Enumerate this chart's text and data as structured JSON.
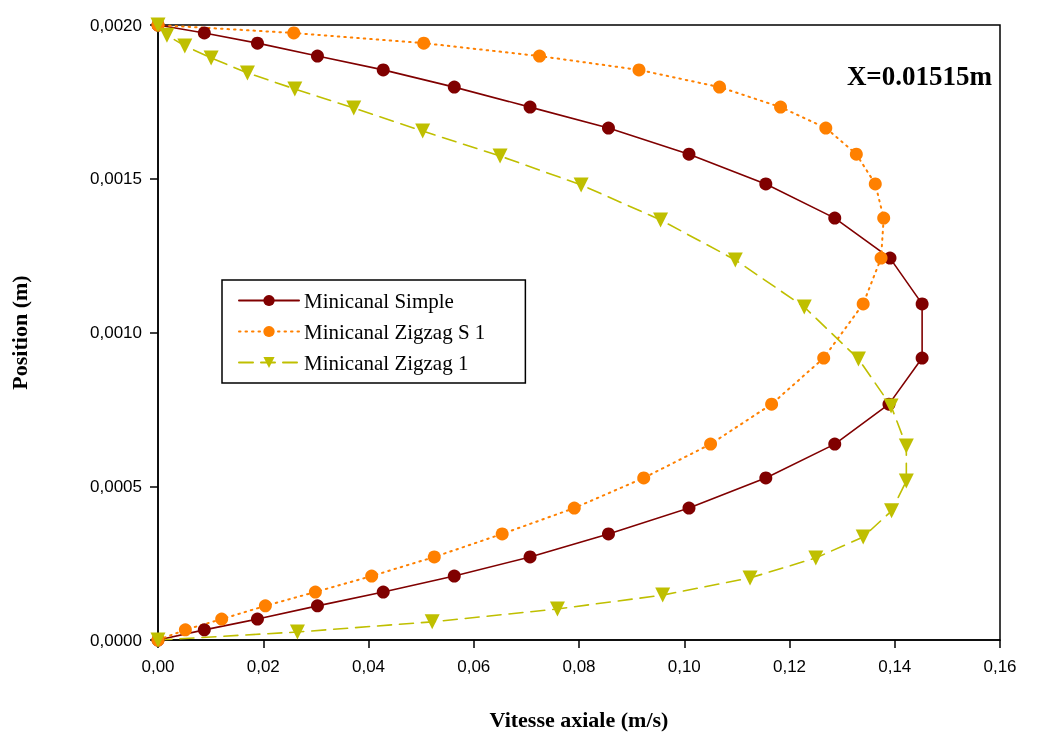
{
  "chart_data": {
    "type": "line",
    "xlabel": "Vitesse axiale (m/s)",
    "ylabel": "Position (m)",
    "annotations": [
      "X=0.01515m"
    ],
    "xlim": [
      0,
      0.16
    ],
    "xticks": [
      {
        "value": 0,
        "label": "0,00"
      },
      {
        "value": 0.02,
        "label": "0,02"
      },
      {
        "value": 0.04,
        "label": "0,04"
      },
      {
        "value": 0.06,
        "label": "0,06"
      },
      {
        "value": 0.08,
        "label": "0,08"
      },
      {
        "value": 0.1,
        "label": "0,10"
      },
      {
        "value": 0.12,
        "label": "0,12"
      },
      {
        "value": 0.14,
        "label": "0,14"
      },
      {
        "value": 0.16,
        "label": "0,16"
      }
    ],
    "ylim": [
      0,
      0.002
    ],
    "yticks": [
      {
        "value": 0,
        "label": "0,0000"
      },
      {
        "value": 0.0005,
        "label": "0,0005"
      },
      {
        "value": 0.001,
        "label": "0,0010"
      },
      {
        "value": 0.0015,
        "label": "0,0015"
      },
      {
        "value": 0.002,
        "label": "0,0020"
      }
    ],
    "grid": false,
    "legend": "left",
    "series": [
      {
        "name": "Minicanal Simple",
        "color": "#800000",
        "marker": "circle",
        "line_style": "solid",
        "x": [
          0,
          0.0088,
          0.0189,
          0.0303,
          0.0428,
          0.0563,
          0.0707,
          0.0856,
          0.1009,
          0.1155,
          0.1286,
          0.1389,
          0.1452,
          0.1452,
          0.1391,
          0.1286,
          0.1155,
          0.1009,
          0.0856,
          0.0707,
          0.0563,
          0.0428,
          0.0303,
          0.0189,
          0.0088,
          0
        ],
        "values": [
          0,
          3.3e-05,
          6.8e-05,
          0.000111,
          0.000156,
          0.000208,
          0.00027,
          0.000345,
          0.000429,
          0.000527,
          0.000637,
          0.000767,
          0.000917,
          0.001093,
          0.001242,
          0.001372,
          0.001483,
          0.00158,
          0.001665,
          0.001733,
          0.001798,
          0.001854,
          0.001899,
          0.001941,
          0.001974,
          0.002
        ]
      },
      {
        "name": "Minicanal Zigzag S 1",
        "color": "#ff8000",
        "marker": "circle",
        "line_style": "dotted",
        "x": [
          0,
          0.0052,
          0.0121,
          0.0204,
          0.0299,
          0.0406,
          0.0525,
          0.0654,
          0.0791,
          0.0923,
          0.105,
          0.1166,
          0.1265,
          0.134,
          0.1374,
          0.1379,
          0.1363,
          0.1327,
          0.1269,
          0.1183,
          0.1067,
          0.0914,
          0.0725,
          0.0505,
          0.0258,
          0
        ],
        "values": [
          0,
          3.3e-05,
          6.8e-05,
          0.000111,
          0.000156,
          0.000208,
          0.00027,
          0.000345,
          0.000429,
          0.000527,
          0.000637,
          0.000767,
          0.000917,
          0.001093,
          0.001242,
          0.001372,
          0.001483,
          0.00158,
          0.001665,
          0.001733,
          0.001798,
          0.001854,
          0.001899,
          0.001941,
          0.001974,
          0.002
        ]
      },
      {
        "name": "Minicanal Zigzag 1",
        "color": "#bfbf00",
        "marker": "triangle",
        "line_style": "dashed",
        "x": [
          0,
          0.0265,
          0.0521,
          0.0759,
          0.0959,
          0.1125,
          0.125,
          0.134,
          0.1394,
          0.1422,
          0.1422,
          0.1393,
          0.1331,
          0.1228,
          0.1097,
          0.0955,
          0.0804,
          0.065,
          0.0503,
          0.0372,
          0.026,
          0.017,
          0.0101,
          0.0051,
          0.0017,
          0
        ],
        "values": [
          0,
          2.6e-05,
          5.9e-05,
          0.000101,
          0.000146,
          0.000202,
          0.000267,
          0.000335,
          0.00042,
          0.000517,
          0.000631,
          0.000761,
          0.000914,
          0.001083,
          0.001236,
          0.001366,
          0.00148,
          0.001574,
          0.001655,
          0.00173,
          0.001792,
          0.001844,
          0.001893,
          0.001932,
          0.001967,
          0.002
        ]
      }
    ]
  }
}
